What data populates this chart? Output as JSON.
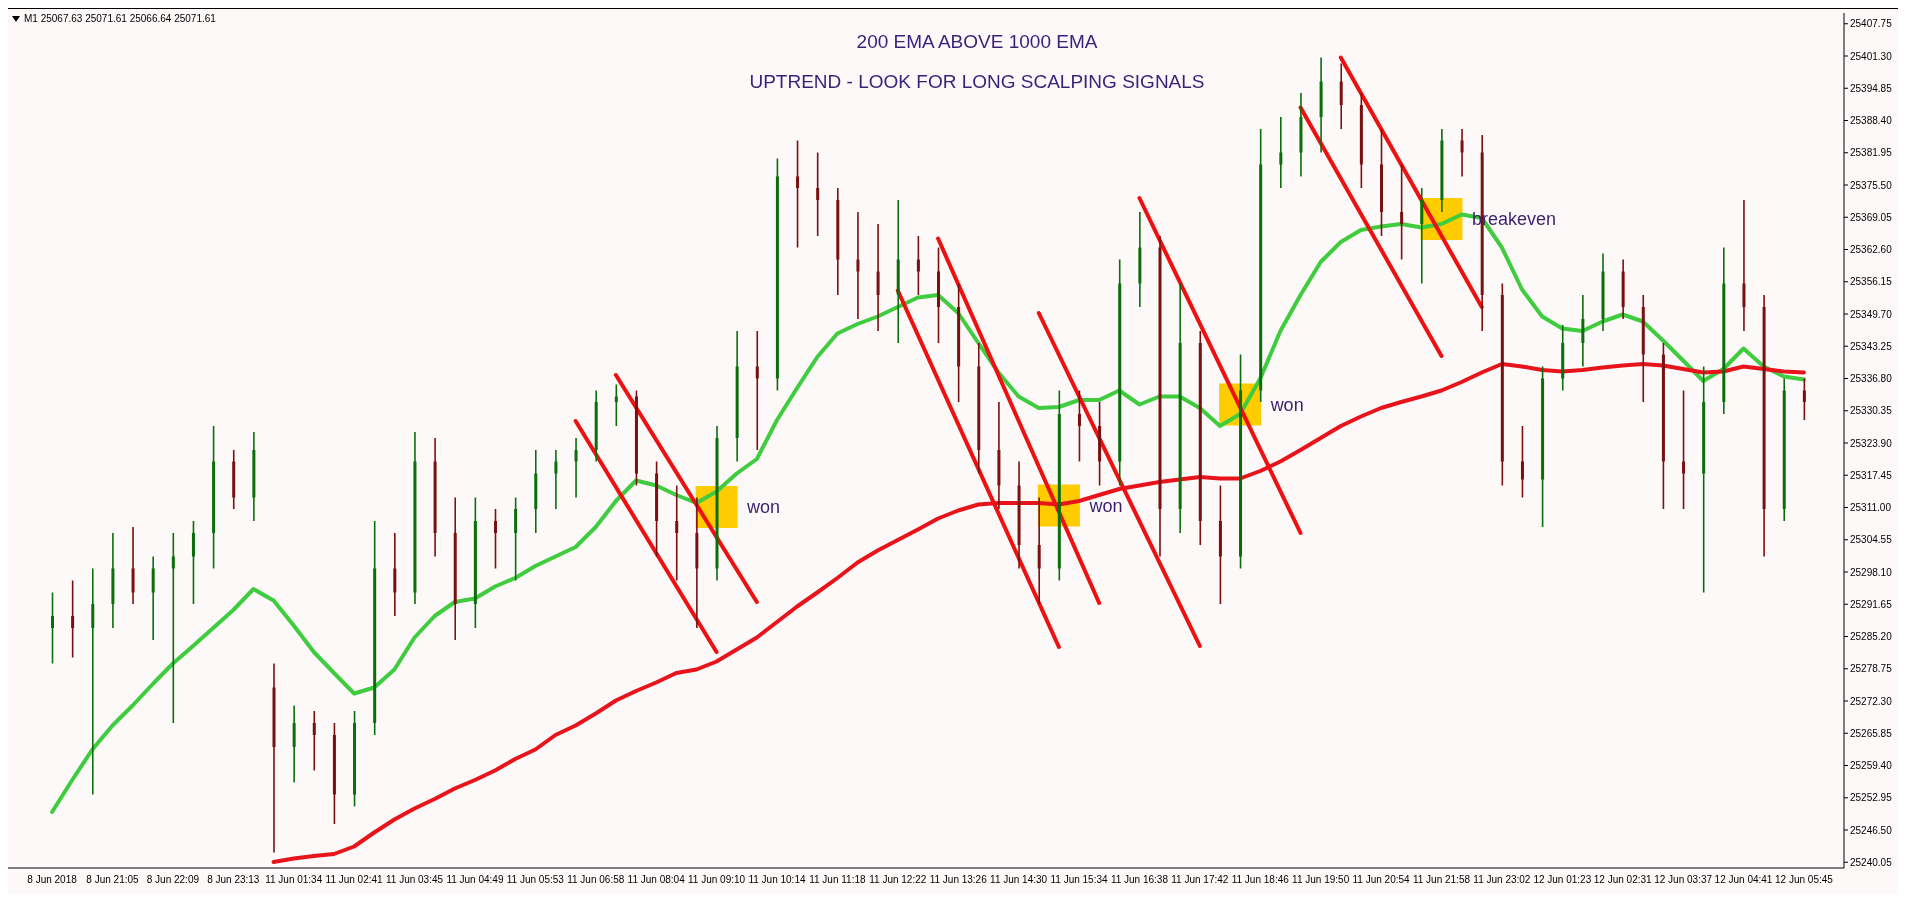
{
  "chart_data": {
    "type": "candlestick",
    "title": "200 EMA ABOVE 1000 EMA",
    "subtitle": "UPTREND - LOOK FOR LONG SCALPING SIGNALS",
    "annotations": [
      "M1  25067.63 25071.61 25066.64 25071.61"
    ],
    "categories": [
      "8 Jun 2018",
      null,
      null,
      "8 Jun 21:05",
      null,
      null,
      "8 Jun 22:09",
      null,
      null,
      "8 Jun 23:13",
      null,
      null,
      "11 Jun 01:34",
      null,
      null,
      "11 Jun 02:41",
      null,
      null,
      "11 Jun 03:45",
      null,
      null,
      "11 Jun 04:49",
      null,
      null,
      "11 Jun 05:53",
      null,
      null,
      "11 Jun 06:58",
      null,
      null,
      "11 Jun 08:04",
      null,
      null,
      "11 Jun 09:10",
      null,
      null,
      "11 Jun 10:14",
      null,
      null,
      "11 Jun 11:18",
      null,
      null,
      "11 Jun 12:22",
      null,
      null,
      "11 Jun 13:26",
      null,
      null,
      "11 Jun 14:30",
      null,
      null,
      "11 Jun 15:34",
      null,
      null,
      "11 Jun 16:38",
      null,
      null,
      "11 Jun 17:42",
      null,
      null,
      "11 Jun 18:46",
      null,
      null,
      "11 Jun 19:50",
      null,
      null,
      "11 Jun 20:54",
      null,
      null,
      "11 Jun 21:58",
      null,
      null,
      "11 Jun 23:02",
      null,
      null,
      "12 Jun 01:23",
      null,
      null,
      "12 Jun 02:31",
      null,
      null,
      "12 Jun 03:37",
      null,
      null,
      "12 Jun 04:41",
      null,
      null,
      "12 Jun 05:45"
    ],
    "ohlc": [
      [
        25286.9,
        25294.0,
        25279.8,
        25289.3
      ],
      [
        25289.3,
        25296.4,
        25281.0,
        25286.9
      ],
      [
        25286.9,
        25298.8,
        25253.6,
        25291.7
      ],
      [
        25291.7,
        25305.9,
        25286.9,
        25298.8
      ],
      [
        25298.8,
        25307.1,
        25291.7,
        25294.0
      ],
      [
        25294.0,
        25301.2,
        25284.5,
        25298.8
      ],
      [
        25298.8,
        25305.9,
        25267.9,
        25301.2
      ],
      [
        25301.2,
        25308.3,
        25291.7,
        25305.9
      ],
      [
        25305.9,
        25327.3,
        25298.8,
        25320.2
      ],
      [
        25320.2,
        25322.5,
        25310.7,
        25313.0
      ],
      [
        25313.0,
        25326.1,
        25308.3,
        25322.5
      ],
      [
        25275.0,
        25279.8,
        25242.0,
        25263.1
      ],
      [
        25263.1,
        25271.4,
        25256.0,
        25267.9
      ],
      [
        25267.9,
        25270.3,
        25258.4,
        25265.5
      ],
      [
        25265.5,
        25267.9,
        25247.7,
        25253.6
      ],
      [
        25253.6,
        25270.3,
        25251.2,
        25267.9
      ],
      [
        25267.9,
        25308.3,
        25265.5,
        25298.8
      ],
      [
        25298.8,
        25305.9,
        25289.3,
        25294.0
      ],
      [
        25294.0,
        25326.1,
        25291.7,
        25320.2
      ],
      [
        25320.2,
        25324.9,
        25301.2,
        25305.9
      ],
      [
        25305.9,
        25313.0,
        25284.5,
        25291.7
      ],
      [
        25291.7,
        25313.0,
        25286.9,
        25308.3
      ],
      [
        25308.3,
        25310.7,
        25298.8,
        25305.9
      ],
      [
        25305.9,
        25313.0,
        25296.4,
        25310.7
      ],
      [
        25310.7,
        25322.5,
        25305.9,
        25317.8
      ],
      [
        25317.8,
        25322.5,
        25310.7,
        25320.2
      ],
      [
        25320.2,
        25324.9,
        25313.0,
        25322.5
      ],
      [
        25322.5,
        25334.4,
        25320.2,
        25332.1
      ],
      [
        25332.1,
        25335.6,
        25327.3,
        25333.2
      ],
      [
        25333.2,
        25334.4,
        25315.4,
        25317.8
      ],
      [
        25317.8,
        25320.2,
        25301.2,
        25308.3
      ],
      [
        25308.3,
        25315.4,
        25296.4,
        25305.9
      ],
      [
        25305.9,
        25313.0,
        25286.9,
        25298.8
      ],
      [
        25298.8,
        25327.3,
        25296.4,
        25324.9
      ],
      [
        25324.9,
        25346.3,
        25320.2,
        25339.2
      ],
      [
        25339.2,
        25346.3,
        25322.5,
        25336.8
      ],
      [
        25336.8,
        25380.8,
        25334.4,
        25377.2
      ],
      [
        25377.2,
        25384.4,
        25363.0,
        25374.9
      ],
      [
        25374.9,
        25382.0,
        25365.3,
        25372.5
      ],
      [
        25372.5,
        25374.9,
        25353.5,
        25360.6
      ],
      [
        25360.6,
        25370.1,
        25348.7,
        25358.2
      ],
      [
        25358.2,
        25367.7,
        25346.3,
        25353.5
      ],
      [
        25353.5,
        25372.5,
        25343.9,
        25360.6
      ],
      [
        25360.6,
        25365.3,
        25353.5,
        25358.2
      ],
      [
        25358.2,
        25363.0,
        25343.9,
        25351.1
      ],
      [
        25351.1,
        25355.8,
        25332.1,
        25339.2
      ],
      [
        25339.2,
        25343.9,
        25317.8,
        25322.5
      ],
      [
        25322.5,
        25332.1,
        25310.7,
        25315.4
      ],
      [
        25315.4,
        25320.2,
        25298.8,
        25303.5
      ],
      [
        25303.5,
        25313.0,
        25291.7,
        25298.8
      ],
      [
        25298.8,
        25334.4,
        25296.4,
        25329.7
      ],
      [
        25329.7,
        25334.4,
        25320.2,
        25327.3
      ],
      [
        25327.3,
        25332.1,
        25315.4,
        25320.2
      ],
      [
        25320.2,
        25360.6,
        25315.4,
        25355.8
      ],
      [
        25355.8,
        25370.1,
        25351.1,
        25363.0
      ],
      [
        25363.0,
        25365.3,
        25301.2,
        25310.7
      ],
      [
        25310.7,
        25355.8,
        25305.9,
        25343.9
      ],
      [
        25343.9,
        25346.3,
        25303.5,
        25308.3
      ],
      [
        25308.3,
        25315.4,
        25291.7,
        25301.2
      ],
      [
        25301.2,
        25341.6,
        25298.8,
        25334.4
      ],
      [
        25334.4,
        25386.7,
        25332.1,
        25379.6
      ],
      [
        25379.6,
        25389.1,
        25374.9,
        25382.0
      ],
      [
        25382.0,
        25393.9,
        25377.2,
        25389.1
      ],
      [
        25389.1,
        25401.0,
        25382.0,
        25396.2
      ],
      [
        25396.2,
        25399.8,
        25386.7,
        25391.5
      ],
      [
        25391.5,
        25393.9,
        25374.9,
        25379.6
      ],
      [
        25379.6,
        25386.7,
        25365.3,
        25370.1
      ],
      [
        25370.1,
        25379.6,
        25360.6,
        25367.7
      ],
      [
        25367.7,
        25374.9,
        25355.8,
        25372.5
      ],
      [
        25372.5,
        25386.7,
        25370.1,
        25384.4
      ],
      [
        25384.4,
        25386.7,
        25377.2,
        25382.0
      ],
      [
        25382.0,
        25385.5,
        25346.3,
        25353.5
      ],
      [
        25353.5,
        25355.8,
        25315.4,
        25320.2
      ],
      [
        25320.2,
        25327.3,
        25313.0,
        25316.6
      ],
      [
        25316.6,
        25339.2,
        25307.1,
        25336.8
      ],
      [
        25336.8,
        25347.5,
        25334.4,
        25343.9
      ],
      [
        25343.9,
        25353.5,
        25339.2,
        25348.7
      ],
      [
        25348.7,
        25361.8,
        25346.3,
        25358.2
      ],
      [
        25358.2,
        25360.6,
        25348.7,
        25351.1
      ],
      [
        25351.1,
        25353.5,
        25332.1,
        25341.6
      ],
      [
        25341.6,
        25343.9,
        25310.7,
        25320.2
      ],
      [
        25320.2,
        25334.4,
        25310.7,
        25317.8
      ],
      [
        25317.8,
        25339.2,
        25294.0,
        25332.1
      ],
      [
        25332.1,
        25363.0,
        25329.7,
        25355.8
      ],
      [
        25355.8,
        25372.5,
        25346.3,
        25351.1
      ],
      [
        25351.1,
        25353.5,
        25301.2,
        25310.7
      ],
      [
        25310.7,
        25336.8,
        25308.3,
        25334.4
      ],
      [
        25334.4,
        25336.8,
        25328.5,
        25332.1
      ]
    ],
    "series": [
      {
        "type": "scatter",
        "color": "#ffcc00",
        "marker": "square",
        "values": [
          null,
          null,
          null,
          null,
          null,
          null,
          null,
          null,
          null,
          null,
          null,
          null,
          null,
          null,
          null,
          null,
          null,
          null,
          null,
          null,
          null,
          null,
          null,
          null,
          null,
          null,
          null,
          null,
          null,
          null,
          null,
          null,
          null,
          25311.1,
          null,
          null,
          null,
          null,
          null,
          null,
          null,
          null,
          null,
          null,
          null,
          null,
          null,
          null,
          null,
          null,
          25311.4,
          null,
          null,
          null,
          null,
          null,
          null,
          null,
          null,
          25331.6,
          null,
          null,
          null,
          null,
          null,
          null,
          null,
          null,
          null,
          25368.7,
          null,
          null,
          null,
          null,
          null,
          null,
          null,
          null,
          null,
          null,
          null,
          null,
          null,
          null,
          null,
          null,
          null,
          null
        ],
        "value_labels": [
          null,
          null,
          null,
          null,
          null,
          null,
          null,
          null,
          null,
          null,
          null,
          null,
          null,
          null,
          null,
          null,
          null,
          null,
          null,
          null,
          null,
          null,
          null,
          null,
          null,
          null,
          null,
          null,
          null,
          null,
          null,
          null,
          null,
          "won",
          null,
          null,
          null,
          null,
          null,
          null,
          null,
          null,
          null,
          null,
          null,
          null,
          null,
          null,
          null,
          null,
          "won",
          null,
          null,
          null,
          null,
          null,
          null,
          null,
          null,
          "won",
          null,
          null,
          null,
          null,
          null,
          null,
          null,
          null,
          null,
          "breakeven",
          null,
          null,
          null,
          null,
          null,
          null,
          null,
          null,
          null,
          null,
          null,
          null,
          null,
          null,
          null,
          null,
          null,
          null
        ]
      },
      {
        "type": "line",
        "color": "#3fcc3f",
        "values": [
          25250.1,
          25256.5,
          25262.6,
          25267.4,
          25271.4,
          25275.7,
          25279.8,
          25283.3,
          25286.9,
          25290.5,
          25294.7,
          25292.4,
          25287.4,
          25282.1,
          25277.9,
          25273.8,
          25275.0,
          25278.6,
          25285.0,
          25289.3,
          25292.1,
          25292.8,
          25295.2,
          25296.9,
          25299.3,
          25301.2,
          25303.1,
          25307.1,
          25312.3,
          25316.4,
          25315.4,
          25313.5,
          25311.9,
          25314.2,
          25317.8,
          25320.7,
          25328.5,
          25334.9,
          25341.1,
          25345.8,
          25347.7,
          25349.2,
          25351.1,
          25353.0,
          25353.5,
          25349.9,
          25343.9,
          25338.0,
          25333.2,
          25330.9,
          25331.1,
          25332.5,
          25332.5,
          25334.4,
          25331.6,
          25333.2,
          25333.2,
          25330.9,
          25327.3,
          25329.7,
          25336.8,
          25346.3,
          25353.5,
          25360.1,
          25364.1,
          25366.5,
          25367.2,
          25367.7,
          25367.0,
          25367.7,
          25369.6,
          25368.9,
          25363.0,
          25354.6,
          25349.2,
          25346.8,
          25346.3,
          25348.2,
          25349.6,
          25348.2,
          25344.4,
          25340.4,
          25336.3,
          25338.7,
          25342.8,
          25339.2,
          25337.2,
          25336.6
        ]
      },
      {
        "type": "line",
        "color": "#e8141c",
        "values": [
          null,
          null,
          null,
          null,
          null,
          null,
          null,
          null,
          null,
          null,
          null,
          25240.1,
          25240.8,
          25241.3,
          25241.7,
          25243.2,
          25246.0,
          25248.6,
          25250.8,
          25252.7,
          25254.8,
          25256.5,
          25258.4,
          25260.7,
          25262.6,
          25265.5,
          25267.4,
          25269.8,
          25272.4,
          25274.3,
          25276.0,
          25277.9,
          25278.6,
          25280.2,
          25282.6,
          25285.0,
          25288.1,
          25291.2,
          25294.0,
          25296.9,
          25300.0,
          25302.4,
          25304.5,
          25306.6,
          25308.8,
          25310.4,
          25311.6,
          25311.9,
          25311.9,
          25311.9,
          25311.6,
          25312.3,
          25313.5,
          25314.7,
          25315.4,
          25316.1,
          25316.6,
          25317.1,
          25316.8,
          25316.8,
          25318.3,
          25320.2,
          25322.5,
          25324.9,
          25327.3,
          25329.2,
          25330.9,
          25332.1,
          25333.2,
          25334.4,
          25336.1,
          25338.0,
          25339.7,
          25339.2,
          25338.5,
          25338.2,
          25338.5,
          25339.0,
          25339.4,
          25339.7,
          25339.4,
          25338.7,
          25338.0,
          25338.2,
          25339.2,
          25338.7,
          25338.2,
          25338.0
        ]
      },
      {
        "type": "line",
        "color": "#ee1111",
        "values": [
          null,
          null,
          null,
          null,
          null,
          null,
          null,
          null,
          null,
          null,
          null,
          null,
          null,
          null,
          null,
          null,
          null,
          null,
          null,
          null,
          null,
          null,
          null,
          null,
          null,
          null,
          25328.3,
          null,
          null,
          null,
          null,
          null,
          null,
          25282.1,
          null,
          null,
          null,
          null,
          null,
          null,
          null,
          null,
          null,
          null,
          null,
          null,
          null,
          null,
          null,
          null,
          null,
          null,
          null,
          null,
          null,
          null,
          null,
          null,
          null,
          null,
          null,
          null,
          null,
          null,
          null,
          null,
          null,
          null,
          null,
          null,
          null,
          null,
          null,
          null,
          null,
          null,
          null,
          null,
          null,
          null,
          null,
          null,
          null,
          null,
          null,
          null,
          null,
          null
        ]
      },
      {
        "type": "line",
        "color": "#ee1111",
        "values": [
          null,
          null,
          null,
          null,
          null,
          null,
          null,
          null,
          null,
          null,
          null,
          null,
          null,
          null,
          null,
          null,
          null,
          null,
          null,
          null,
          null,
          null,
          null,
          null,
          null,
          null,
          null,
          null,
          25337.5,
          null,
          null,
          null,
          null,
          null,
          null,
          25292.1,
          null,
          null,
          null,
          null,
          null,
          null,
          null,
          null,
          null,
          null,
          null,
          null,
          null,
          null,
          null,
          null,
          null,
          null,
          null,
          null,
          null,
          null,
          null,
          null,
          null,
          null,
          null,
          null,
          null,
          null,
          null,
          null,
          null,
          null,
          null,
          null,
          null,
          null,
          null,
          null,
          null,
          null,
          null,
          null,
          null,
          null,
          null,
          null,
          null,
          null,
          null,
          null
        ]
      },
      {
        "type": "line",
        "color": "#ee1111",
        "values": [
          null,
          null,
          null,
          null,
          null,
          null,
          null,
          null,
          null,
          null,
          null,
          null,
          null,
          null,
          null,
          null,
          null,
          null,
          null,
          null,
          null,
          null,
          null,
          null,
          null,
          null,
          null,
          null,
          null,
          null,
          null,
          null,
          null,
          null,
          null,
          null,
          null,
          null,
          null,
          null,
          null,
          null,
          25354.4,
          null,
          null,
          null,
          null,
          null,
          null,
          null,
          25283.1,
          null,
          null,
          null,
          null,
          null,
          null,
          null,
          null,
          null,
          null,
          null,
          null,
          null,
          null,
          null,
          null,
          null,
          null,
          null,
          null,
          null,
          null,
          null,
          null,
          null,
          null,
          null,
          null,
          null,
          null,
          null,
          null,
          null,
          null,
          null,
          null,
          null
        ]
      },
      {
        "type": "line",
        "color": "#ee1111",
        "values": [
          null,
          null,
          null,
          null,
          null,
          null,
          null,
          null,
          null,
          null,
          null,
          null,
          null,
          null,
          null,
          null,
          null,
          null,
          null,
          null,
          null,
          null,
          null,
          null,
          null,
          null,
          null,
          null,
          null,
          null,
          null,
          null,
          null,
          null,
          null,
          null,
          null,
          null,
          null,
          null,
          null,
          null,
          null,
          null,
          25364.8,
          null,
          null,
          null,
          null,
          null,
          null,
          null,
          25291.9,
          null,
          null,
          null,
          null,
          null,
          null,
          null,
          null,
          null,
          null,
          null,
          null,
          null,
          null,
          null,
          null,
          null,
          null,
          null,
          null,
          null,
          null,
          null,
          null,
          null,
          null,
          null,
          null,
          null,
          null,
          null,
          null,
          null,
          null,
          null
        ]
      },
      {
        "type": "line",
        "color": "#ee1111",
        "values": [
          null,
          null,
          null,
          null,
          null,
          null,
          null,
          null,
          null,
          null,
          null,
          null,
          null,
          null,
          null,
          null,
          null,
          null,
          null,
          null,
          null,
          null,
          null,
          null,
          null,
          null,
          null,
          null,
          null,
          null,
          null,
          null,
          null,
          null,
          null,
          null,
          null,
          null,
          null,
          null,
          null,
          null,
          null,
          null,
          null,
          null,
          null,
          null,
          null,
          25349.9,
          null,
          null,
          null,
          null,
          null,
          null,
          null,
          25283.3,
          null,
          null,
          null,
          null,
          null,
          null,
          null,
          null,
          null,
          null,
          null,
          null,
          null,
          null,
          null,
          null,
          null,
          null,
          null,
          null,
          null,
          null,
          null,
          null,
          null,
          null,
          null,
          null,
          null,
          null
        ]
      },
      {
        "type": "line",
        "color": "#ee1111",
        "values": [
          null,
          null,
          null,
          null,
          null,
          null,
          null,
          null,
          null,
          null,
          null,
          null,
          null,
          null,
          null,
          null,
          null,
          null,
          null,
          null,
          null,
          null,
          null,
          null,
          null,
          null,
          null,
          null,
          null,
          null,
          null,
          null,
          null,
          null,
          null,
          null,
          null,
          null,
          null,
          null,
          null,
          null,
          null,
          null,
          null,
          null,
          null,
          null,
          null,
          null,
          null,
          null,
          null,
          null,
          25372.9,
          null,
          null,
          null,
          null,
          null,
          null,
          null,
          25305.9,
          null,
          null,
          null,
          null,
          null,
          null,
          null,
          null,
          null,
          null,
          null,
          null,
          null,
          null,
          null,
          null,
          null,
          null,
          null,
          null,
          null,
          null,
          null,
          null,
          null
        ]
      },
      {
        "type": "line",
        "color": "#ee1111",
        "values": [
          null,
          null,
          null,
          null,
          null,
          null,
          null,
          null,
          null,
          null,
          null,
          null,
          null,
          null,
          null,
          null,
          null,
          null,
          null,
          null,
          null,
          null,
          null,
          null,
          null,
          null,
          null,
          null,
          null,
          null,
          null,
          null,
          null,
          null,
          null,
          null,
          null,
          null,
          null,
          null,
          null,
          null,
          null,
          null,
          null,
          null,
          null,
          null,
          null,
          null,
          null,
          null,
          null,
          null,
          null,
          null,
          null,
          null,
          null,
          null,
          null,
          null,
          25391.0,
          null,
          null,
          null,
          null,
          null,
          null,
          25341.3,
          null,
          null,
          null,
          null,
          null,
          null,
          null,
          null,
          null,
          null,
          null,
          null,
          null,
          null,
          null,
          null,
          null,
          null
        ]
      },
      {
        "type": "line",
        "color": "#ee1111",
        "values": [
          null,
          null,
          null,
          null,
          null,
          null,
          null,
          null,
          null,
          null,
          null,
          null,
          null,
          null,
          null,
          null,
          null,
          null,
          null,
          null,
          null,
          null,
          null,
          null,
          null,
          null,
          null,
          null,
          null,
          null,
          null,
          null,
          null,
          null,
          null,
          null,
          null,
          null,
          null,
          null,
          null,
          null,
          null,
          null,
          null,
          null,
          null,
          null,
          null,
          null,
          null,
          null,
          null,
          null,
          null,
          null,
          null,
          null,
          null,
          null,
          null,
          null,
          null,
          null,
          25401.0,
          null,
          null,
          null,
          null,
          null,
          null,
          25351.1,
          null,
          null,
          null,
          null,
          null,
          null,
          null,
          null,
          null,
          null,
          null,
          null,
          null,
          null,
          null,
          null
        ]
      }
    ],
    "ylim": [
      25238.9,
      25409.9
    ],
    "yticks": [
      {
        "value": 25240.05,
        "label": "25240.05"
      },
      {
        "value": 25246.5,
        "label": "25246.50"
      },
      {
        "value": 25252.95,
        "label": "25252.95"
      },
      {
        "value": 25259.4,
        "label": "25259.40"
      },
      {
        "value": 25265.85,
        "label": "25265.85"
      },
      {
        "value": 25272.3,
        "label": "25272.30"
      },
      {
        "value": 25278.75,
        "label": "25278.75"
      },
      {
        "value": 25285.2,
        "label": "25285.20"
      },
      {
        "value": 25291.65,
        "label": "25291.65"
      },
      {
        "value": 25298.1,
        "label": "25298.10"
      },
      {
        "value": 25304.55,
        "label": "25304.55"
      },
      {
        "value": 25311,
        "label": "25311.00"
      },
      {
        "value": 25317.45,
        "label": "25317.45"
      },
      {
        "value": 25323.9,
        "label": "25323.90"
      },
      {
        "value": 25330.35,
        "label": "25330.35"
      },
      {
        "value": 25336.8,
        "label": "25336.80"
      },
      {
        "value": 25343.25,
        "label": "25343.25"
      },
      {
        "value": 25349.7,
        "label": "25349.70"
      },
      {
        "value": 25356.15,
        "label": "25356.15"
      },
      {
        "value": 25362.6,
        "label": "25362.60"
      },
      {
        "value": 25369.05,
        "label": "25369.05"
      },
      {
        "value": 25375.5,
        "label": "25375.50"
      },
      {
        "value": 25381.95,
        "label": "25381.95"
      },
      {
        "value": 25388.4,
        "label": "25388.40"
      },
      {
        "value": 25394.85,
        "label": "25394.85"
      },
      {
        "value": 25401.3,
        "label": "25401.30"
      },
      {
        "value": 25407.75,
        "label": "25407.75"
      }
    ]
  }
}
